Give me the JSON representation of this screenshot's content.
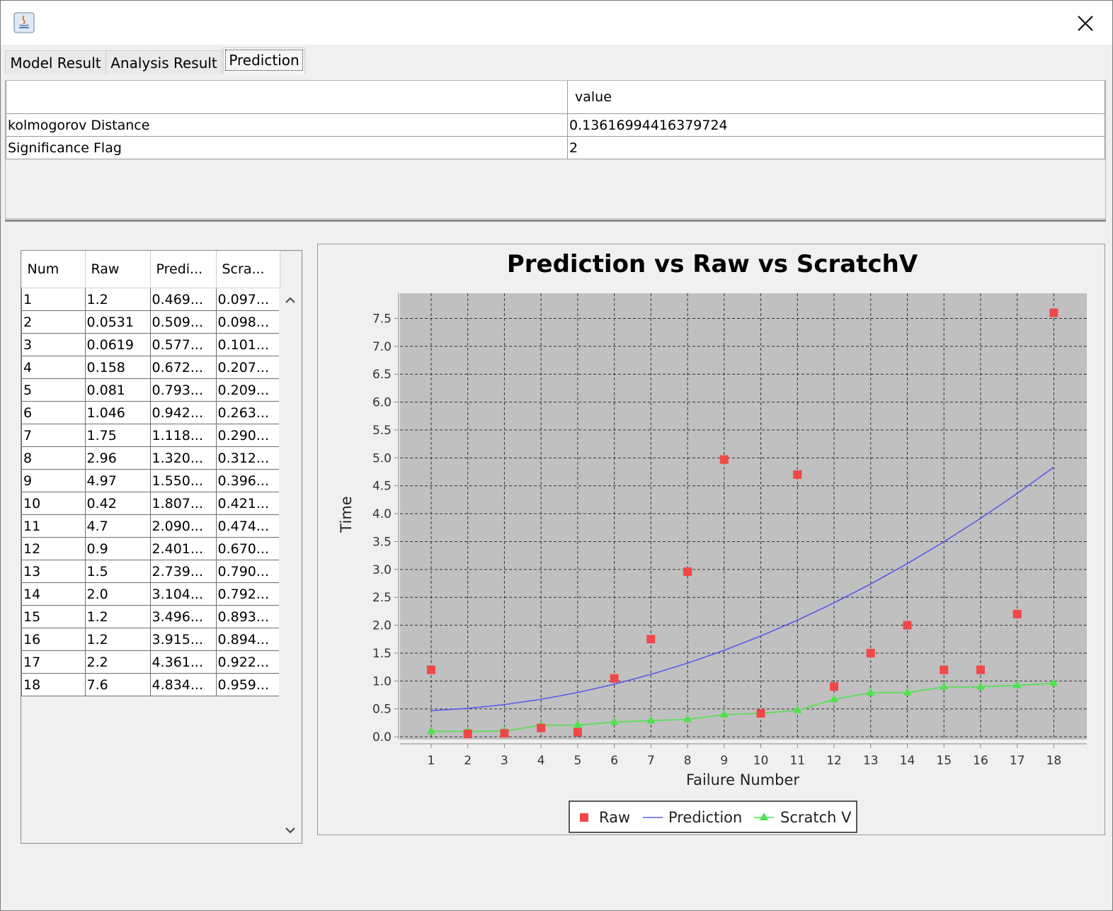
{
  "window": {
    "title": ""
  },
  "tabs": [
    {
      "label": "Model Result"
    },
    {
      "label": "Analysis Result"
    },
    {
      "label": "Prediction"
    }
  ],
  "stats": {
    "header": {
      "col1": "",
      "col2": "value"
    },
    "rows": [
      {
        "name": "kolmogorov Distance",
        "value": "0.13616994416379724"
      },
      {
        "name": "Significance Flag",
        "value": "2"
      }
    ]
  },
  "data_table": {
    "headers": [
      "Num",
      "Raw",
      "Predi...",
      "Scra..."
    ],
    "rows": [
      [
        "1",
        "1.2",
        "0.469...",
        "0.097..."
      ],
      [
        "2",
        "0.0531",
        "0.509...",
        "0.098..."
      ],
      [
        "3",
        "0.0619",
        "0.577...",
        "0.101..."
      ],
      [
        "4",
        "0.158",
        "0.672...",
        "0.207..."
      ],
      [
        "5",
        "0.081",
        "0.793...",
        "0.209..."
      ],
      [
        "6",
        "1.046",
        "0.942...",
        "0.263..."
      ],
      [
        "7",
        "1.75",
        "1.118...",
        "0.290..."
      ],
      [
        "8",
        "2.96",
        "1.320...",
        "0.312..."
      ],
      [
        "9",
        "4.97",
        "1.550...",
        "0.396..."
      ],
      [
        "10",
        "0.42",
        "1.807...",
        "0.421..."
      ],
      [
        "11",
        "4.7",
        "2.090...",
        "0.474..."
      ],
      [
        "12",
        "0.9",
        "2.401...",
        "0.670..."
      ],
      [
        "13",
        "1.5",
        "2.739...",
        "0.790..."
      ],
      [
        "14",
        "2.0",
        "3.104...",
        "0.792..."
      ],
      [
        "15",
        "1.2",
        "3.496...",
        "0.893..."
      ],
      [
        "16",
        "1.2",
        "3.915...",
        "0.894..."
      ],
      [
        "17",
        "2.2",
        "4.361...",
        "0.922..."
      ],
      [
        "18",
        "7.6",
        "4.834...",
        "0.959..."
      ]
    ]
  },
  "colors": {
    "raw": "#f04848",
    "prediction": "#5a5aee",
    "scratch": "#4ee24e",
    "plot_bg": "#c0c0c0"
  },
  "chart_data": {
    "type": "line",
    "title": "Prediction vs Raw vs ScratchV",
    "xlabel": "Failure Number",
    "ylabel": "Time",
    "x": [
      1,
      2,
      3,
      4,
      5,
      6,
      7,
      8,
      9,
      10,
      11,
      12,
      13,
      14,
      15,
      16,
      17,
      18
    ],
    "xlim": [
      0.15,
      18.9
    ],
    "ylim": [
      -0.05,
      7.95
    ],
    "yticks": [
      0.0,
      0.5,
      1.0,
      1.5,
      2.0,
      2.5,
      3.0,
      3.5,
      4.0,
      4.5,
      5.0,
      5.5,
      6.0,
      6.5,
      7.0,
      7.5
    ],
    "grid": true,
    "legend_position": "bottom",
    "series": [
      {
        "name": "Raw",
        "style": "markers-square",
        "values": [
          1.2,
          0.0531,
          0.0619,
          0.158,
          0.081,
          1.046,
          1.75,
          2.96,
          4.97,
          0.42,
          4.7,
          0.9,
          1.5,
          2.0,
          1.2,
          1.2,
          2.2,
          7.6
        ]
      },
      {
        "name": "Prediction",
        "style": "line",
        "values": [
          0.469,
          0.509,
          0.577,
          0.672,
          0.793,
          0.942,
          1.118,
          1.32,
          1.55,
          1.807,
          2.09,
          2.401,
          2.739,
          3.104,
          3.496,
          3.915,
          4.361,
          4.834
        ]
      },
      {
        "name": "Scratch V",
        "style": "line-triangles",
        "values": [
          0.097,
          0.098,
          0.101,
          0.207,
          0.209,
          0.263,
          0.29,
          0.312,
          0.396,
          0.421,
          0.474,
          0.67,
          0.79,
          0.792,
          0.893,
          0.894,
          0.922,
          0.959
        ]
      }
    ]
  }
}
